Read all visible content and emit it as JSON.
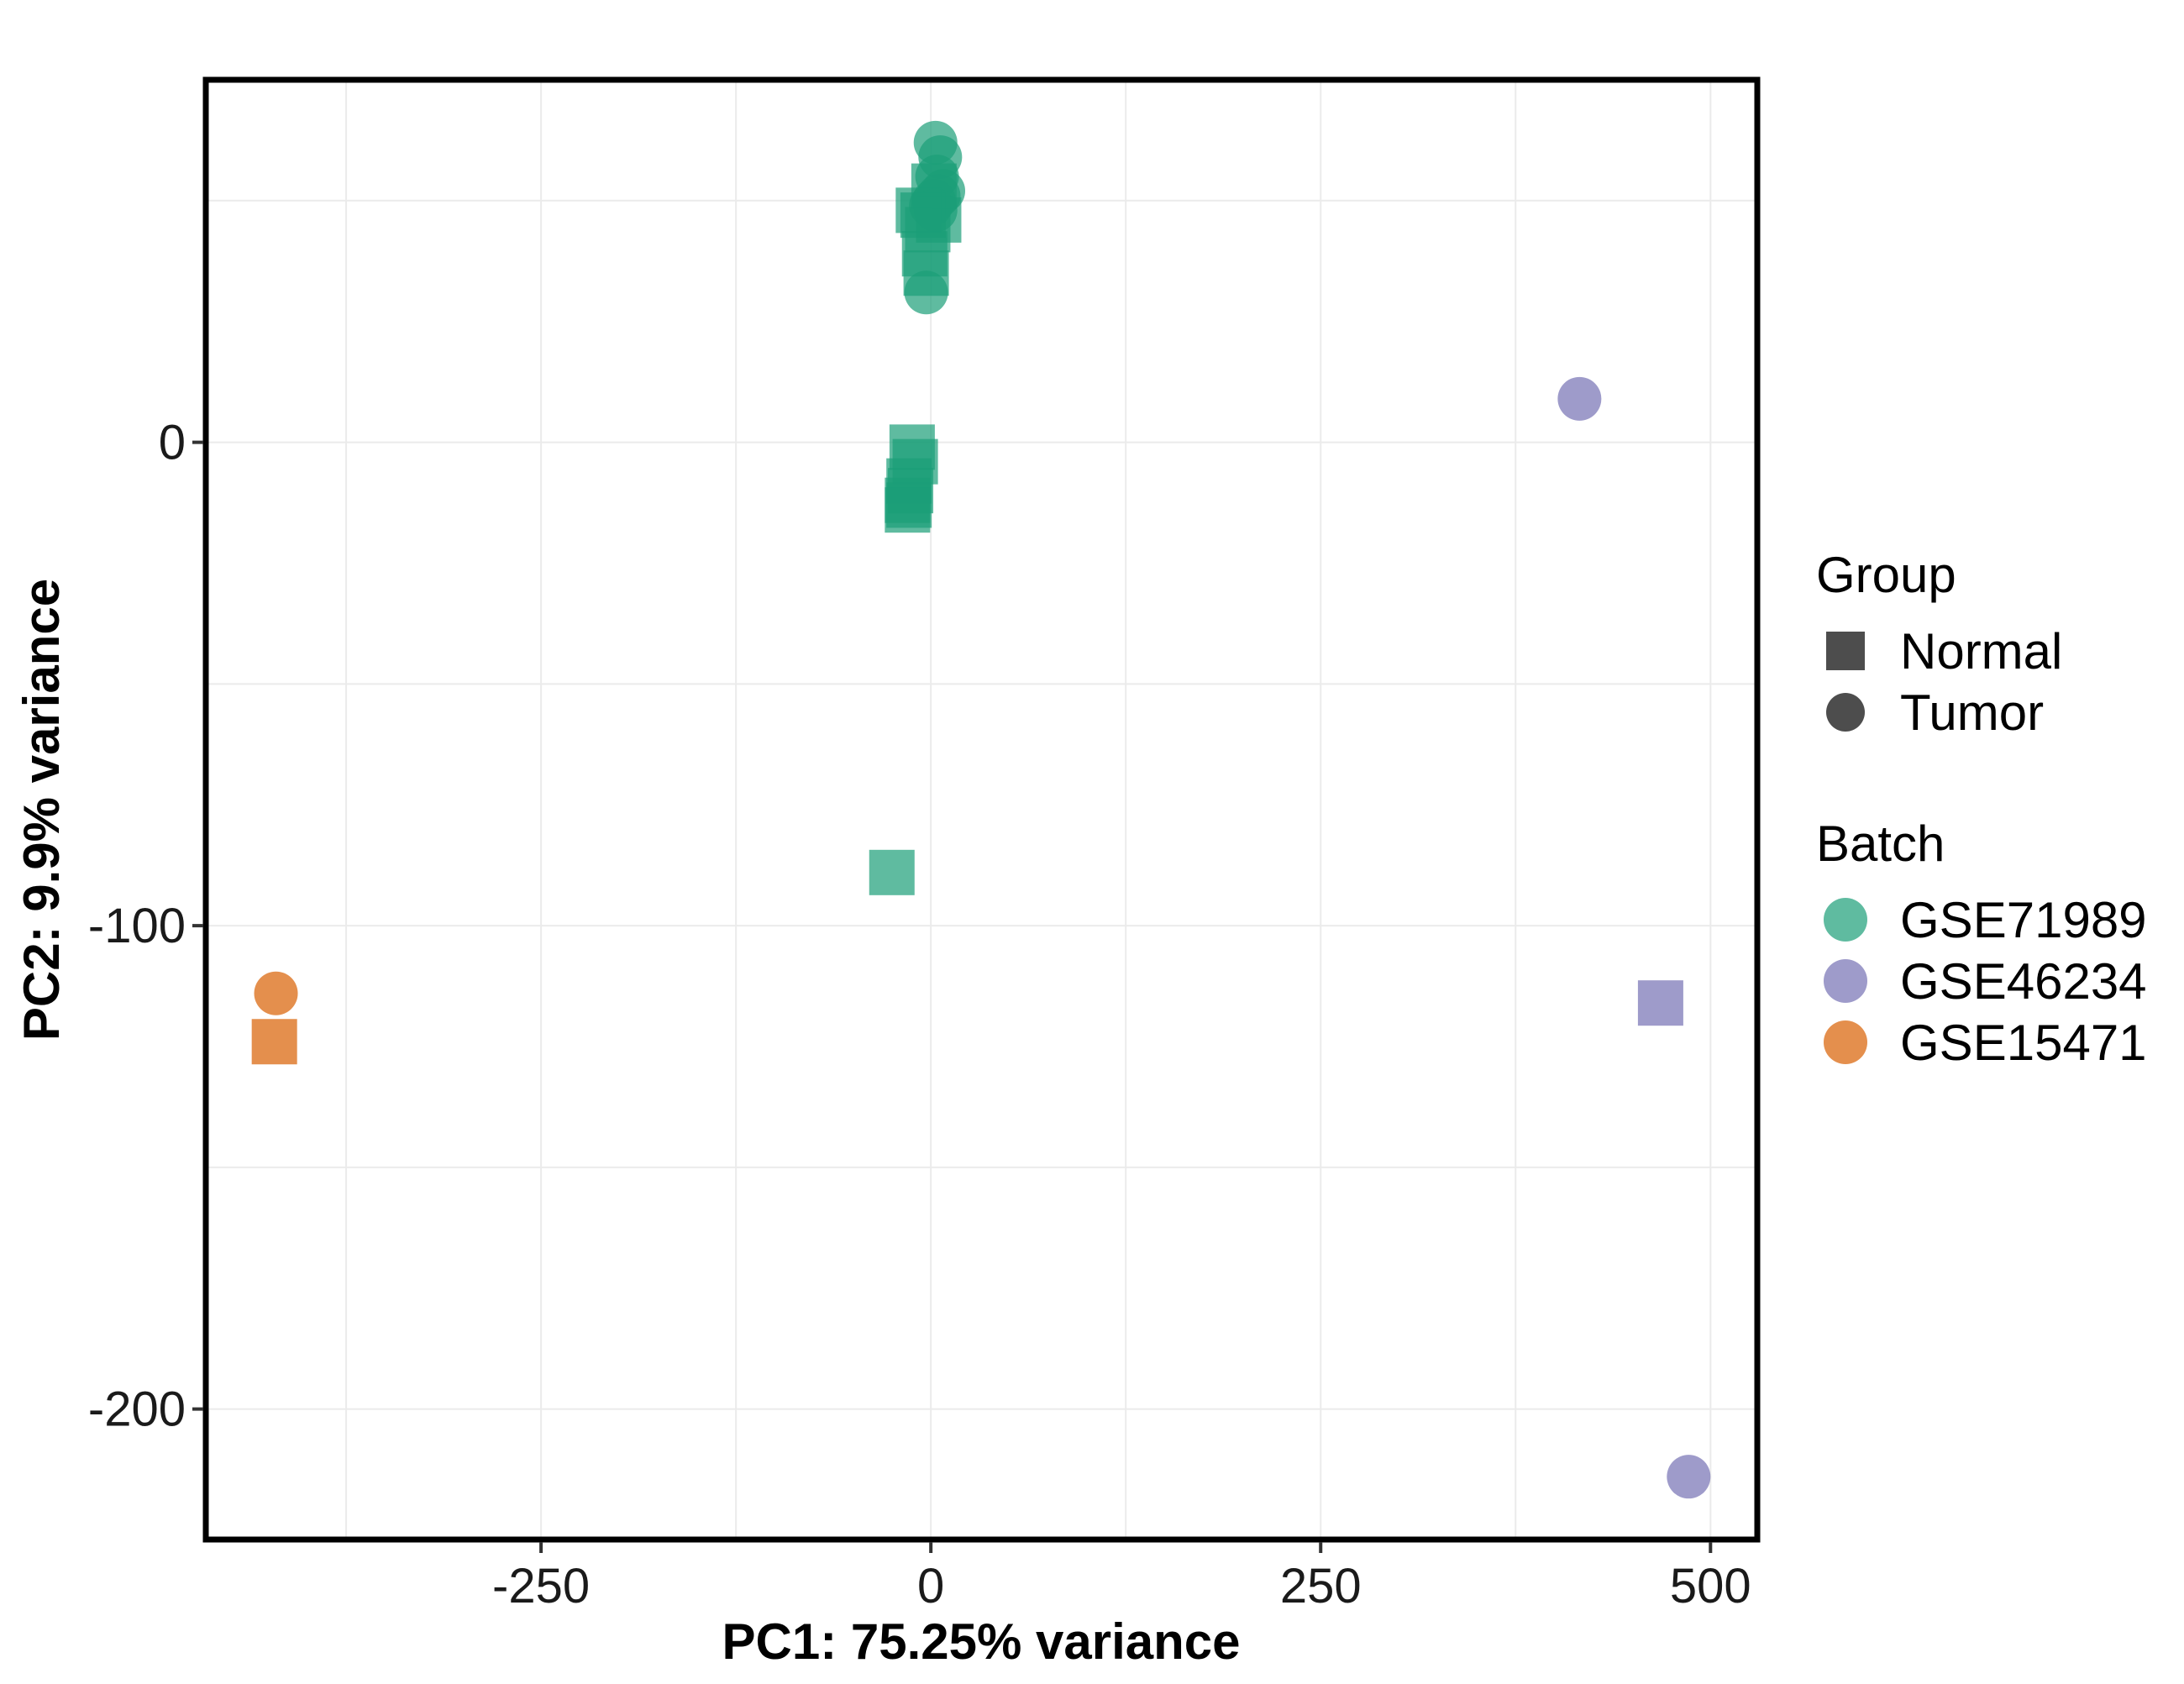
{
  "chart_data": {
    "type": "scatter",
    "title": "",
    "xlabel": "PC1: 75.25% variance",
    "ylabel": "PC2: 9.9% variance",
    "xlim": [
      -465,
      530
    ],
    "ylim": [
      -227,
      75
    ],
    "x_ticks": [
      -250,
      0,
      250,
      500
    ],
    "x_tick_labels": [
      "-250",
      "0",
      "250",
      "500"
    ],
    "y_ticks": [
      -200,
      -100,
      0
    ],
    "y_tick_labels": [
      "-200",
      "-100",
      "0"
    ],
    "grid": true,
    "legend_position": "right",
    "shape_legend": {
      "title": "Group",
      "items": [
        {
          "label": "Normal",
          "shape": "square"
        },
        {
          "label": "Tumor",
          "shape": "circle"
        }
      ]
    },
    "color_legend": {
      "title": "Batch",
      "items": [
        {
          "label": "GSE71989",
          "color": "#1b9e77"
        },
        {
          "label": "GSE46234",
          "color": "#7570b3"
        },
        {
          "label": "GSE15471",
          "color": "#d95f02"
        }
      ]
    },
    "series": [
      {
        "name": "GSE71989",
        "color": "#1b9e77",
        "points": [
          {
            "x": 3,
            "y": 62,
            "group": "Tumor"
          },
          {
            "x": 6,
            "y": 59,
            "group": "Tumor"
          },
          {
            "x": 4,
            "y": 55,
            "group": "Tumor"
          },
          {
            "x": 8,
            "y": 52,
            "group": "Tumor"
          },
          {
            "x": 5,
            "y": 51,
            "group": "Tumor"
          },
          {
            "x": 2,
            "y": 50,
            "group": "Tumor"
          },
          {
            "x": 0,
            "y": 49,
            "group": "Tumor"
          },
          {
            "x": 3,
            "y": 48,
            "group": "Tumor"
          },
          {
            "x": -3,
            "y": 31,
            "group": "Tumor"
          },
          {
            "x": 2,
            "y": 53,
            "group": "Normal"
          },
          {
            "x": -5,
            "y": 47,
            "group": "Normal"
          },
          {
            "x": 5,
            "y": 46,
            "group": "Normal"
          },
          {
            "x": -8,
            "y": 48,
            "group": "Normal"
          },
          {
            "x": -2,
            "y": 44,
            "group": "Normal"
          },
          {
            "x": -4,
            "y": 39,
            "group": "Normal"
          },
          {
            "x": -3,
            "y": 35,
            "group": "Normal"
          },
          {
            "x": -12,
            "y": -1,
            "group": "Normal"
          },
          {
            "x": -10,
            "y": -4,
            "group": "Normal"
          },
          {
            "x": -14,
            "y": -8,
            "group": "Normal"
          },
          {
            "x": -13,
            "y": -10,
            "group": "Normal"
          },
          {
            "x": -15,
            "y": -12,
            "group": "Normal"
          },
          {
            "x": -14,
            "y": -13,
            "group": "Normal"
          },
          {
            "x": -15,
            "y": -14,
            "group": "Normal"
          },
          {
            "x": -25,
            "y": -89,
            "group": "Normal"
          }
        ]
      },
      {
        "name": "GSE46234",
        "color": "#7570b3",
        "points": [
          {
            "x": 416,
            "y": 9,
            "group": "Tumor"
          },
          {
            "x": 468,
            "y": -116,
            "group": "Normal"
          },
          {
            "x": 486,
            "y": -214,
            "group": "Tumor"
          }
        ]
      },
      {
        "name": "GSE15471",
        "color": "#d95f02",
        "points": [
          {
            "x": -420,
            "y": -114,
            "group": "Tumor"
          },
          {
            "x": -421,
            "y": -124,
            "group": "Normal"
          }
        ]
      }
    ]
  }
}
